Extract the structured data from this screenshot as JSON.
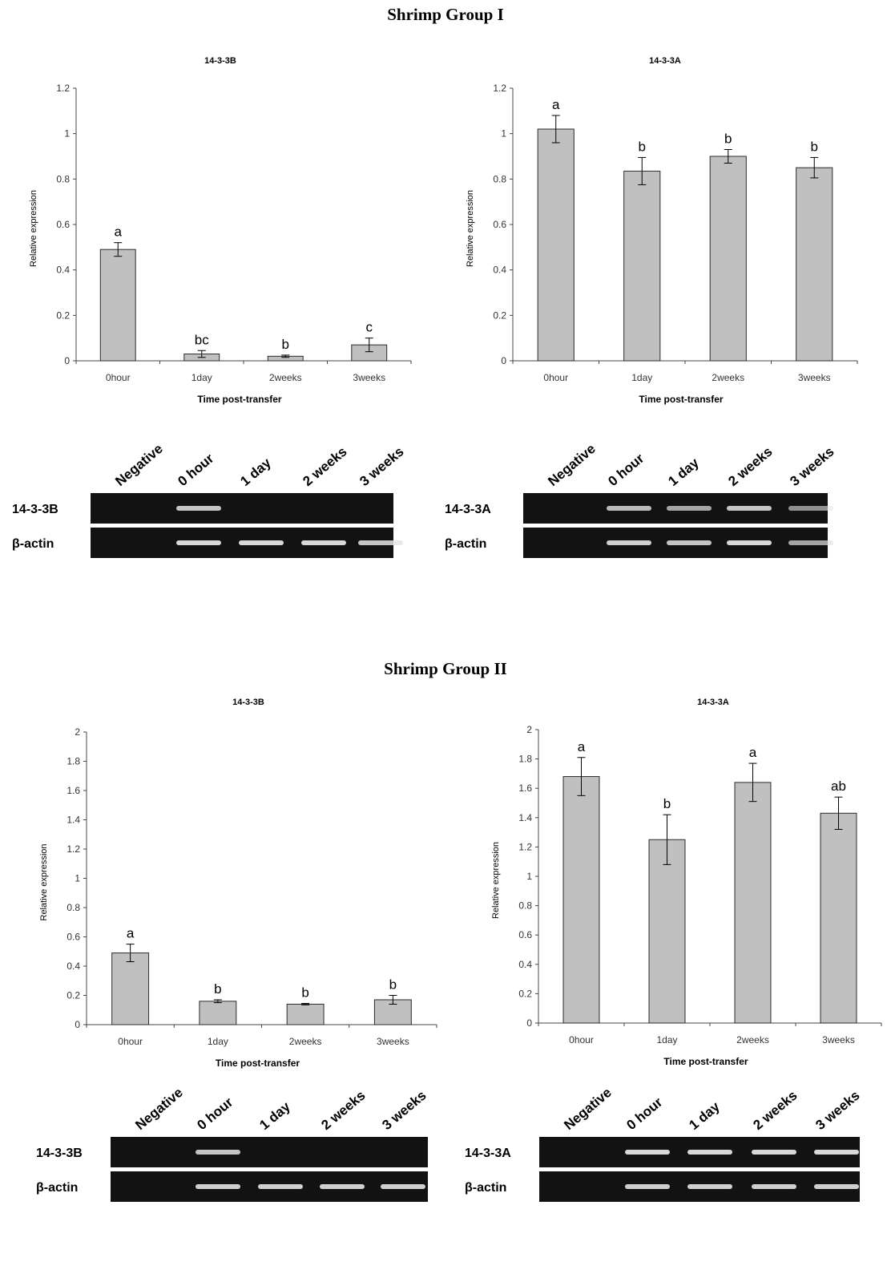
{
  "groups": [
    {
      "title": "Shrimp Group I"
    },
    {
      "title": "Shrimp Group II"
    }
  ],
  "colors": {
    "bar": "#c0c0c0",
    "bar_edge": "#2b2b2b",
    "gel_bg": "#121212",
    "band": "#e4e4e4"
  },
  "chart_data": [
    {
      "type": "bar",
      "group": "Shrimp Group I",
      "title": "14-3-3B",
      "xlabel": "Time post-transfer",
      "ylabel": "Relative expression",
      "categories": [
        "0hour",
        "1day",
        "2weeks",
        "3weeks"
      ],
      "values": [
        0.49,
        0.03,
        0.02,
        0.07
      ],
      "errors": [
        0.03,
        0.015,
        0.005,
        0.03
      ],
      "letters": [
        "a",
        "bc",
        "b",
        "c"
      ],
      "ylim": [
        0,
        1.2
      ],
      "yticks": [
        "0",
        "0.2",
        "0.4",
        "0.6",
        "0.8",
        "1",
        "1.2"
      ],
      "grid": false,
      "legend": "none"
    },
    {
      "type": "bar",
      "group": "Shrimp Group I",
      "title": "14-3-3A",
      "xlabel": "Time post-transfer",
      "ylabel": "Relative expression",
      "categories": [
        "0hour",
        "1day",
        "2weeks",
        "3weeks"
      ],
      "values": [
        1.02,
        0.835,
        0.9,
        0.85
      ],
      "errors": [
        0.06,
        0.06,
        0.03,
        0.045
      ],
      "letters": [
        "a",
        "b",
        "b",
        "b"
      ],
      "ylim": [
        0,
        1.2
      ],
      "yticks": [
        "0",
        "0.2",
        "0.4",
        "0.6",
        "0.8",
        "1",
        "1.2"
      ],
      "grid": false,
      "legend": "none"
    },
    {
      "type": "bar",
      "group": "Shrimp Group II",
      "title": "14-3-3B",
      "xlabel": "Time post-transfer",
      "ylabel": "Relative expression",
      "categories": [
        "0hour",
        "1day",
        "2weeks",
        "3weeks"
      ],
      "values": [
        0.49,
        0.16,
        0.14,
        0.17
      ],
      "errors": [
        0.06,
        0.01,
        0.005,
        0.03
      ],
      "letters": [
        "a",
        "b",
        "b",
        "b"
      ],
      "ylim": [
        0,
        2
      ],
      "yticks": [
        "0",
        "0.2",
        "0.4",
        "0.6",
        "0.8",
        "1",
        "1.2",
        "1.4",
        "1.6",
        "1.8",
        "2"
      ],
      "grid": false,
      "legend": "none"
    },
    {
      "type": "bar",
      "group": "Shrimp Group II",
      "title": "14-3-3A",
      "xlabel": "Time post-transfer",
      "ylabel": "Relative expression",
      "categories": [
        "0hour",
        "1day",
        "2weeks",
        "3weeks"
      ],
      "values": [
        1.68,
        1.25,
        1.64,
        1.43
      ],
      "errors": [
        0.13,
        0.17,
        0.13,
        0.11
      ],
      "letters": [
        "a",
        "b",
        "a",
        "ab"
      ],
      "ylim": [
        0,
        2
      ],
      "yticks": [
        "0",
        "0.2",
        "0.4",
        "0.6",
        "0.8",
        "1",
        "1.2",
        "1.4",
        "1.6",
        "1.8",
        "2"
      ],
      "grid": false,
      "legend": "none"
    }
  ],
  "gels": [
    {
      "lanes": [
        "Negative",
        "0 hour",
        "1 day",
        "2 weeks",
        "3 weeks"
      ],
      "rows": [
        {
          "label": "14-3-3B",
          "intensity": [
            0,
            0.85,
            0,
            0,
            0
          ]
        },
        {
          "label": "β-actin",
          "intensity": [
            0,
            0.95,
            0.95,
            0.95,
            0.85
          ]
        }
      ]
    },
    {
      "lanes": [
        "Negative",
        "0 hour",
        "1 day",
        "2 weeks",
        "3 weeks"
      ],
      "rows": [
        {
          "label": "14-3-3A",
          "intensity": [
            0,
            0.8,
            0.7,
            0.85,
            0.6
          ]
        },
        {
          "label": "β-actin",
          "intensity": [
            0,
            0.9,
            0.85,
            0.95,
            0.7
          ]
        }
      ]
    },
    {
      "lanes": [
        "Negative",
        "0 hour",
        "1 day",
        "2 weeks",
        "3 weeks"
      ],
      "rows": [
        {
          "label": "14-3-3B",
          "intensity": [
            0,
            0.85,
            0,
            0,
            0
          ]
        },
        {
          "label": "β-actin",
          "intensity": [
            0,
            0.9,
            0.9,
            0.9,
            0.9
          ]
        }
      ]
    },
    {
      "lanes": [
        "Negative",
        "0 hour",
        "1 day",
        "2 weeks",
        "3 weeks"
      ],
      "rows": [
        {
          "label": "14-3-3A",
          "intensity": [
            0,
            0.95,
            0.95,
            0.95,
            0.95
          ]
        },
        {
          "label": "β-actin",
          "intensity": [
            0,
            0.9,
            0.9,
            0.9,
            0.9
          ]
        }
      ]
    }
  ]
}
